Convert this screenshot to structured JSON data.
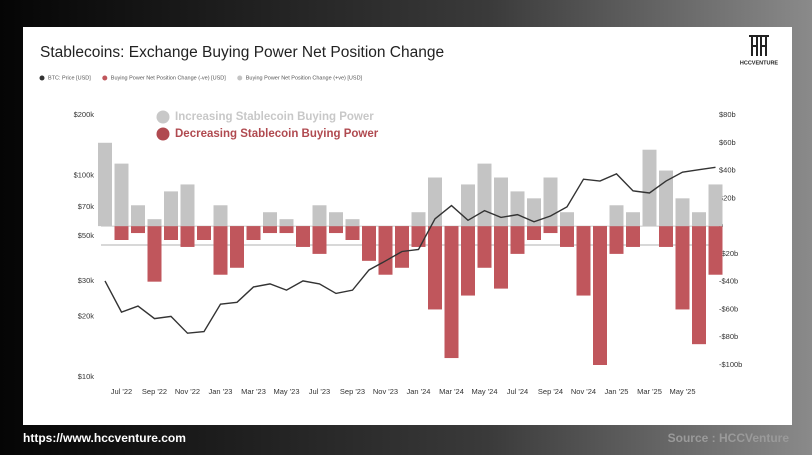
{
  "chart_data": {
    "type": "bar-line",
    "title": "Stablecoins: Exchange Buying Power Net Position Change",
    "categories": [
      null,
      "Jul '22",
      null,
      "Sep '22",
      null,
      "Nov '22",
      null,
      "Jan '23",
      null,
      "Mar '23",
      null,
      "May '23",
      null,
      "Jul '23",
      null,
      "Sep '23",
      null,
      "Nov '23",
      null,
      "Jan '24",
      null,
      "Mar '24",
      null,
      "May '24",
      null,
      "Jul '24",
      null,
      "Sep '24",
      null,
      "Nov '24",
      null,
      "Jan '25",
      null,
      "Mar '25",
      null,
      "May '25",
      null,
      null
    ],
    "series": [
      {
        "name": "BTC: Price [USD]",
        "color": "#333333",
        "kind": "line",
        "values": [
          30000,
          21000,
          22500,
          19500,
          20000,
          16500,
          16800,
          23000,
          23500,
          28000,
          29000,
          27000,
          30000,
          29000,
          26000,
          27000,
          34000,
          37700,
          42000,
          43000,
          61000,
          71000,
          60000,
          67000,
          62000,
          64000,
          59000,
          63000,
          70000,
          96000,
          94000,
          102000,
          84000,
          82000,
          94000,
          104000,
          107000,
          110000
        ]
      },
      {
        "name": "Buying Power Net Position Change (-ve) [USD]",
        "color": "#c0565c",
        "axis": "y2",
        "kind": "bar",
        "values": [
          0,
          -10000000000.0,
          -5000000000.0,
          -40000000000.0,
          -10000000000.0,
          -15000000000.0,
          -10000000000.0,
          -35000000000.0,
          -30000000000.0,
          -10000000000.0,
          -5000000000.0,
          -5000000000.0,
          -15000000000.0,
          -20000000000.0,
          -5000000000.0,
          -10000000000.0,
          -25000000000.0,
          -35000000000.0,
          -30000000000.0,
          -15000000000.0,
          -60000000000.0,
          -95000000000.0,
          -50000000000.0,
          -30000000000.0,
          -45000000000.0,
          -20000000000.0,
          -10000000000.0,
          -5000000000.0,
          -15000000000.0,
          -50000000000.0,
          -100000000000.0,
          -20000000000.0,
          -15000000000.0,
          0,
          -15000000000.0,
          -60000000000.0,
          -85000000000.0,
          -35000000000.0
        ]
      },
      {
        "name": "Buying Power Net Position Change (+ve) [USD]",
        "color": "#c4c4c4",
        "axis": "y2",
        "kind": "bar",
        "values": [
          60000000000.0,
          45000000000.0,
          15000000000.0,
          5000000000.0,
          25000000000.0,
          30000000000.0,
          0,
          15000000000.0,
          0,
          0,
          10000000000.0,
          5000000000.0,
          0,
          15000000000.0,
          10000000000.0,
          5000000000.0,
          0,
          0,
          0,
          10000000000.0,
          35000000000.0,
          0,
          30000000000.0,
          45000000000.0,
          35000000000.0,
          25000000000.0,
          20000000000.0,
          35000000000.0,
          10000000000.0,
          0,
          0,
          15000000000.0,
          10000000000.0,
          55000000000.0,
          40000000000.0,
          20000000000.0,
          10000000000.0,
          30000000000.0
        ]
      }
    ],
    "ylog": true,
    "ylim": [
      10000,
      200000
    ],
    "yticks": [
      {
        "value": 10000,
        "label": "$10k"
      },
      {
        "value": 20000,
        "label": "$20k"
      },
      {
        "value": 30000,
        "label": "$30k"
      },
      {
        "value": 50000,
        "label": "$50k"
      },
      {
        "value": 70000,
        "label": "$70k"
      },
      {
        "value": 100000,
        "label": "$100k"
      },
      {
        "value": 200000,
        "label": "$200k"
      }
    ],
    "y2lim": [
      -100000000000.0,
      80000000000.0
    ],
    "y2ticks": [
      {
        "value": -100000000000.0,
        "label": "-$100b"
      },
      {
        "value": -80000000000.0,
        "label": "-$80b"
      },
      {
        "value": -60000000000.0,
        "label": "-$60b"
      },
      {
        "value": -40000000000.0,
        "label": "-$40b"
      },
      {
        "value": -20000000000.0,
        "label": "-$20b"
      },
      0,
      {
        "value": 20000000000.0,
        "label": "$20b"
      },
      {
        "value": 40000000000.0,
        "label": "$40b"
      },
      {
        "value": 60000000000.0,
        "label": "$60b"
      },
      {
        "value": 80000000000.0,
        "label": "$80b"
      }
    ],
    "annotations": [
      {
        "text": "Increasing Stablecoin Buying Power",
        "color": "#c8c8c8"
      },
      {
        "text": "Decreasing Stablecoin Buying Power",
        "color": "#b04a50"
      }
    ],
    "legend": "top-left"
  },
  "logo": "HCCVENTURE",
  "footer": {
    "url": "https://www.hccventure.com",
    "source": "Source : HCCVenture"
  }
}
